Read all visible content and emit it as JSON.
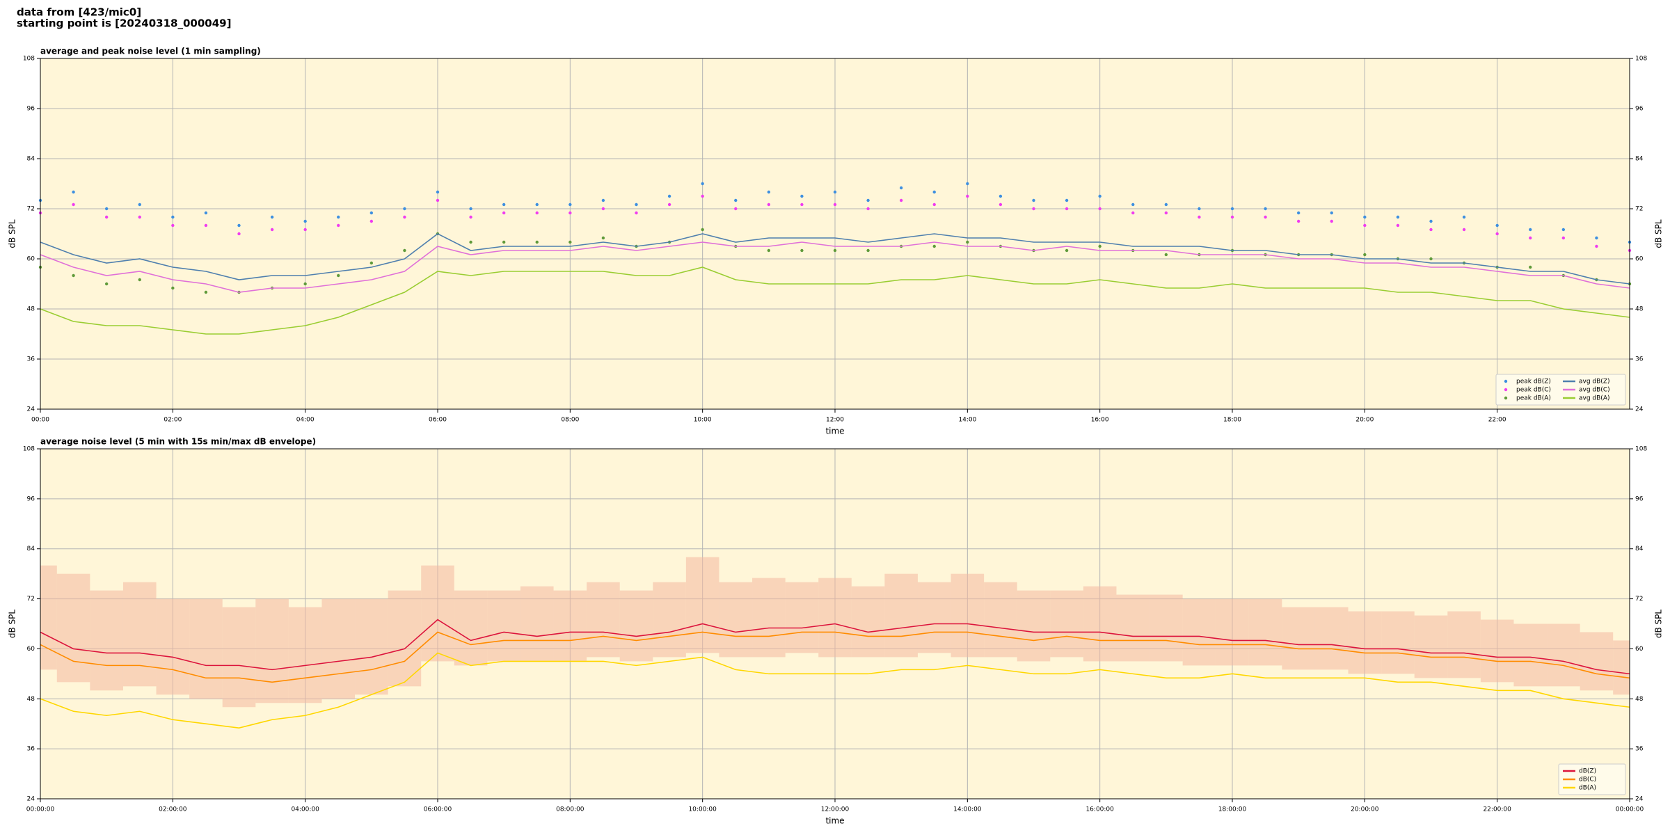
{
  "header": [
    "data from [423/mic0]",
    "starting point is [20240318_000049]"
  ],
  "chart_data": [
    {
      "type": "line",
      "title": "average and peak noise level (1 min sampling)",
      "x_label": "time",
      "y_label": "dB SPL",
      "xlim": [
        0,
        24
      ],
      "xticks": [
        {
          "value": 0,
          "label": "00:00"
        },
        {
          "value": 2,
          "label": "02:00"
        },
        {
          "value": 4,
          "label": "04:00"
        },
        {
          "value": 6,
          "label": "06:00"
        },
        {
          "value": 8,
          "label": "08:00"
        },
        {
          "value": 10,
          "label": "10:00"
        },
        {
          "value": 12,
          "label": "12:00"
        },
        {
          "value": 14,
          "label": "14:00"
        },
        {
          "value": 16,
          "label": "16:00"
        },
        {
          "value": 18,
          "label": "18:00"
        },
        {
          "value": 20,
          "label": "20:00"
        },
        {
          "value": 22,
          "label": "22:00"
        }
      ],
      "ylim": [
        24,
        108
      ],
      "yticks": [
        24,
        36,
        48,
        60,
        72,
        84,
        96,
        108
      ],
      "grid": true,
      "legend": "lower right",
      "legend_columns": 2,
      "x": [
        0,
        0.5,
        1,
        1.5,
        2,
        2.5,
        3,
        3.5,
        4,
        4.5,
        5,
        5.5,
        6,
        6.5,
        7,
        7.5,
        8,
        8.5,
        9,
        9.5,
        10,
        10.5,
        11,
        11.5,
        12,
        12.5,
        13,
        13.5,
        14,
        14.5,
        15,
        15.5,
        16,
        16.5,
        17,
        17.5,
        18,
        18.5,
        19,
        19.5,
        20,
        20.5,
        21,
        21.5,
        22,
        22.5,
        23,
        23.5,
        24
      ],
      "series": [
        {
          "name": "peak dB(Z)",
          "style": "scatter",
          "color": "#3d8fe0",
          "values": [
            74,
            76,
            72,
            73,
            70,
            71,
            68,
            70,
            69,
            70,
            71,
            72,
            76,
            72,
            73,
            73,
            73,
            74,
            73,
            75,
            78,
            74,
            76,
            75,
            76,
            74,
            77,
            76,
            78,
            75,
            74,
            74,
            75,
            73,
            73,
            72,
            72,
            72,
            71,
            71,
            70,
            70,
            69,
            70,
            68,
            67,
            67,
            65,
            64
          ]
        },
        {
          "name": "peak dB(C)",
          "style": "scatter",
          "color": "#f03cf0",
          "values": [
            71,
            73,
            70,
            70,
            68,
            68,
            66,
            67,
            67,
            68,
            69,
            70,
            74,
            70,
            71,
            71,
            71,
            72,
            71,
            73,
            75,
            72,
            73,
            73,
            73,
            72,
            74,
            73,
            75,
            73,
            72,
            72,
            72,
            71,
            71,
            70,
            70,
            70,
            69,
            69,
            68,
            68,
            67,
            67,
            66,
            65,
            65,
            63,
            62
          ]
        },
        {
          "name": "peak dB(A)",
          "style": "scatter",
          "color": "#5f9a3a",
          "values": [
            58,
            56,
            54,
            55,
            53,
            52,
            52,
            53,
            54,
            56,
            59,
            62,
            66,
            64,
            64,
            64,
            64,
            65,
            63,
            64,
            67,
            63,
            62,
            62,
            62,
            62,
            63,
            63,
            64,
            63,
            62,
            62,
            63,
            62,
            61,
            61,
            62,
            61,
            61,
            61,
            61,
            60,
            60,
            59,
            58,
            58,
            56,
            55,
            54
          ]
        },
        {
          "name": "avg dB(Z)",
          "style": "line",
          "color": "#4f7fae",
          "values": [
            64,
            61,
            59,
            60,
            58,
            57,
            55,
            56,
            56,
            57,
            58,
            60,
            66,
            62,
            63,
            63,
            63,
            64,
            63,
            64,
            66,
            64,
            65,
            65,
            65,
            64,
            65,
            66,
            65,
            65,
            64,
            64,
            64,
            63,
            63,
            63,
            62,
            62,
            61,
            61,
            60,
            60,
            59,
            59,
            58,
            57,
            57,
            55,
            54
          ]
        },
        {
          "name": "avg dB(C)",
          "style": "line",
          "color": "#e070d8",
          "values": [
            61,
            58,
            56,
            57,
            55,
            54,
            52,
            53,
            53,
            54,
            55,
            57,
            63,
            61,
            62,
            62,
            62,
            63,
            62,
            63,
            64,
            63,
            63,
            64,
            63,
            63,
            63,
            64,
            63,
            63,
            62,
            63,
            62,
            62,
            62,
            61,
            61,
            61,
            60,
            60,
            59,
            59,
            58,
            58,
            57,
            56,
            56,
            54,
            53
          ]
        },
        {
          "name": "avg dB(A)",
          "style": "line",
          "color": "#9acd32",
          "values": [
            48,
            45,
            44,
            44,
            43,
            42,
            42,
            43,
            44,
            46,
            49,
            52,
            57,
            56,
            57,
            57,
            57,
            57,
            56,
            56,
            58,
            55,
            54,
            54,
            54,
            54,
            55,
            55,
            56,
            55,
            54,
            54,
            55,
            54,
            53,
            53,
            54,
            53,
            53,
            53,
            53,
            52,
            52,
            51,
            50,
            50,
            48,
            47,
            46
          ]
        }
      ]
    },
    {
      "type": "line",
      "title": "average noise level (5 min with 15s min/max dB envelope)",
      "x_label": "time",
      "y_label": "dB SPL",
      "xlim": [
        0,
        24
      ],
      "xticks": [
        {
          "value": 0,
          "label": "00:00:00"
        },
        {
          "value": 2,
          "label": "02:00:00"
        },
        {
          "value": 4,
          "label": "04:00:00"
        },
        {
          "value": 6,
          "label": "06:00:00"
        },
        {
          "value": 8,
          "label": "08:00:00"
        },
        {
          "value": 10,
          "label": "10:00:00"
        },
        {
          "value": 12,
          "label": "12:00:00"
        },
        {
          "value": 14,
          "label": "14:00:00"
        },
        {
          "value": 16,
          "label": "16:00:00"
        },
        {
          "value": 18,
          "label": "18:00:00"
        },
        {
          "value": 20,
          "label": "20:00:00"
        },
        {
          "value": 22,
          "label": "22:00:00"
        },
        {
          "value": 24,
          "label": "00:00:00"
        }
      ],
      "ylim": [
        24,
        108
      ],
      "yticks": [
        24,
        36,
        48,
        60,
        72,
        84,
        96,
        108
      ],
      "grid": true,
      "legend": "lower right",
      "legend_columns": 1,
      "x": [
        0,
        0.5,
        1,
        1.5,
        2,
        2.5,
        3,
        3.5,
        4,
        4.5,
        5,
        5.5,
        6,
        6.5,
        7,
        7.5,
        8,
        8.5,
        9,
        9.5,
        10,
        10.5,
        11,
        11.5,
        12,
        12.5,
        13,
        13.5,
        14,
        14.5,
        15,
        15.5,
        16,
        16.5,
        17,
        17.5,
        18,
        18.5,
        19,
        19.5,
        20,
        20.5,
        21,
        21.5,
        22,
        22.5,
        23,
        23.5,
        24
      ],
      "envelope": {
        "color": "#f4b8a0",
        "min": [
          55,
          52,
          50,
          51,
          49,
          48,
          46,
          47,
          47,
          48,
          49,
          51,
          57,
          56,
          57,
          57,
          57,
          58,
          57,
          58,
          59,
          58,
          58,
          59,
          58,
          58,
          58,
          59,
          58,
          58,
          57,
          58,
          57,
          57,
          57,
          56,
          56,
          56,
          55,
          55,
          54,
          54,
          53,
          53,
          52,
          51,
          51,
          50,
          49
        ],
        "max": [
          80,
          78,
          74,
          76,
          72,
          72,
          70,
          72,
          70,
          72,
          72,
          74,
          80,
          74,
          74,
          75,
          74,
          76,
          74,
          76,
          82,
          76,
          77,
          76,
          77,
          75,
          78,
          76,
          78,
          76,
          74,
          74,
          75,
          73,
          73,
          72,
          72,
          72,
          70,
          70,
          69,
          69,
          68,
          69,
          67,
          66,
          66,
          64,
          62
        ]
      },
      "series": [
        {
          "name": "dB(Z)",
          "style": "line",
          "color": "#dc143c",
          "values": [
            64,
            60,
            59,
            59,
            58,
            56,
            56,
            55,
            56,
            57,
            58,
            60,
            67,
            62,
            64,
            63,
            64,
            64,
            63,
            64,
            66,
            64,
            65,
            65,
            66,
            64,
            65,
            66,
            66,
            65,
            64,
            64,
            64,
            63,
            63,
            63,
            62,
            62,
            61,
            61,
            60,
            60,
            59,
            59,
            58,
            58,
            57,
            55,
            54
          ]
        },
        {
          "name": "dB(C)",
          "style": "line",
          "color": "#ff8c00",
          "values": [
            61,
            57,
            56,
            56,
            55,
            53,
            53,
            52,
            53,
            54,
            55,
            57,
            64,
            61,
            62,
            62,
            62,
            63,
            62,
            63,
            64,
            63,
            63,
            64,
            64,
            63,
            63,
            64,
            64,
            63,
            62,
            63,
            62,
            62,
            62,
            61,
            61,
            61,
            60,
            60,
            59,
            59,
            58,
            58,
            57,
            57,
            56,
            54,
            53
          ]
        },
        {
          "name": "dB(A)",
          "style": "line",
          "color": "#ffd700",
          "values": [
            48,
            45,
            44,
            45,
            43,
            42,
            41,
            43,
            44,
            46,
            49,
            52,
            59,
            56,
            57,
            57,
            57,
            57,
            56,
            57,
            58,
            55,
            54,
            54,
            54,
            54,
            55,
            55,
            56,
            55,
            54,
            54,
            55,
            54,
            53,
            53,
            54,
            53,
            53,
            53,
            53,
            52,
            52,
            51,
            50,
            50,
            48,
            47,
            46
          ]
        }
      ]
    }
  ]
}
